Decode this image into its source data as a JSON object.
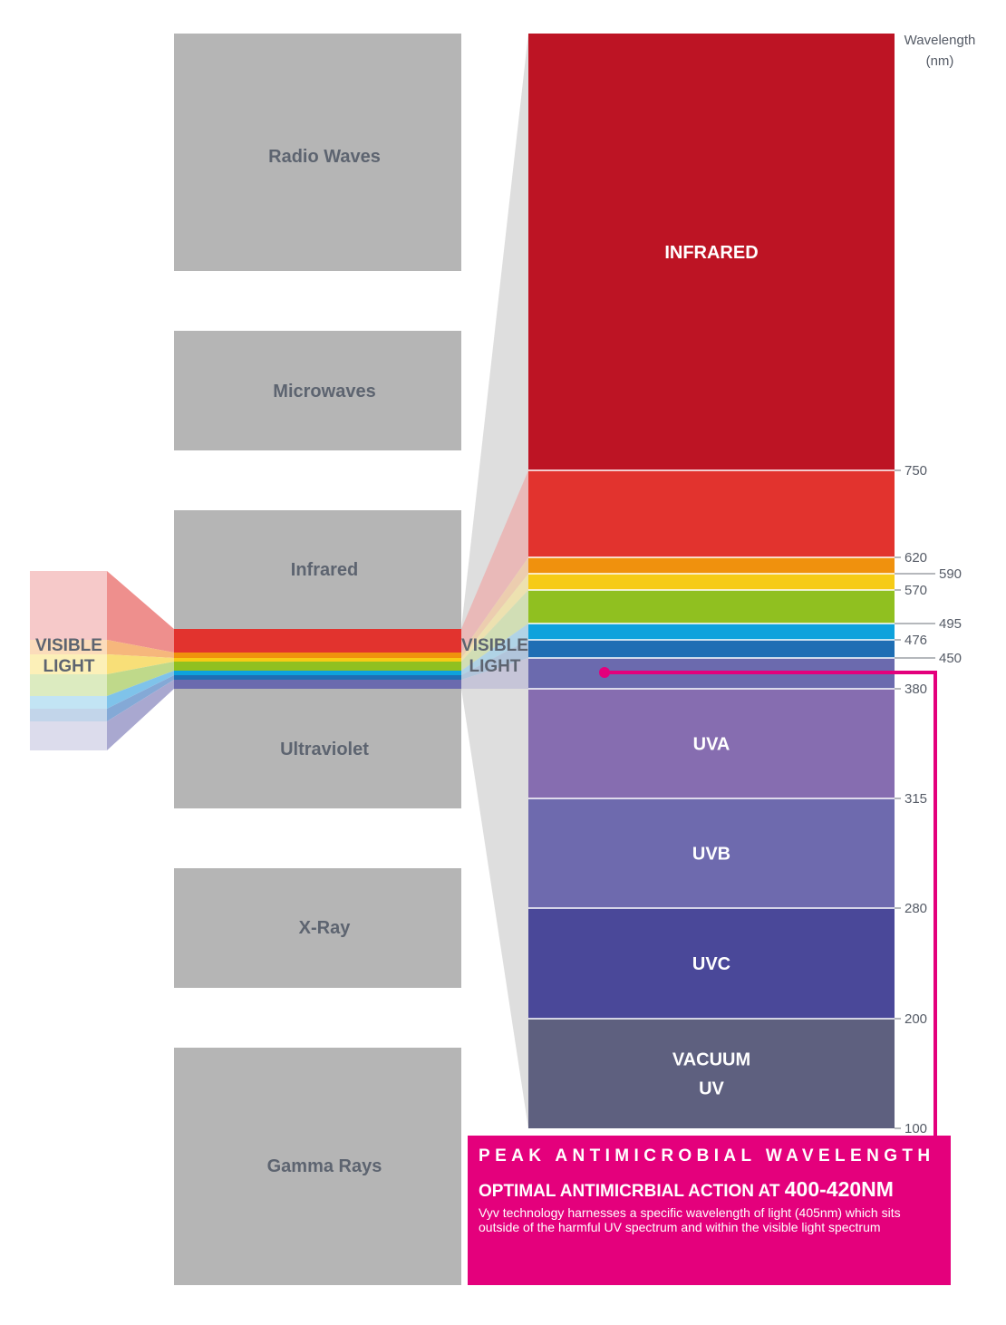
{
  "spectrum": [
    {
      "label": "Radio Waves"
    },
    {
      "label": "Microwaves"
    },
    {
      "label": "Infrared"
    },
    {
      "label": "Ultraviolet"
    },
    {
      "label": "X-Ray"
    },
    {
      "label": "Gamma Rays"
    }
  ],
  "visible_light_label": {
    "line1": "VISIBLE",
    "line2": "LIGHT"
  },
  "axis_title": {
    "line1": "Wavelength",
    "line2": "(nm)"
  },
  "bands": [
    {
      "label1": "INFRARED",
      "label2": "",
      "color": "#bd1424"
    },
    {
      "label1": "",
      "label2": "",
      "color": "#e2332e"
    },
    {
      "label1": "",
      "label2": "",
      "color": "#f0910d"
    },
    {
      "label1": "",
      "label2": "",
      "color": "#f6cb16"
    },
    {
      "label1": "",
      "label2": "",
      "color": "#90c020"
    },
    {
      "label1": "",
      "label2": "",
      "color": "#0ea2dc"
    },
    {
      "label1": "",
      "label2": "",
      "color": "#1f6eb4"
    },
    {
      "label1": "",
      "label2": "",
      "color": "#6b6aae"
    },
    {
      "label1": "UVA",
      "label2": "",
      "color": "#866db0"
    },
    {
      "label1": "UVB",
      "label2": "",
      "color": "#6e6aae"
    },
    {
      "label1": "UVC",
      "label2": "",
      "color": "#4a4899"
    },
    {
      "label1": "VACUUM",
      "label2": "UV",
      "color": "#5e607f"
    }
  ],
  "ticks": [
    {
      "value": "750"
    },
    {
      "value": "620"
    },
    {
      "value": "590"
    },
    {
      "value": "570"
    },
    {
      "value": "495"
    },
    {
      "value": "476"
    },
    {
      "value": "450"
    },
    {
      "value": "380"
    },
    {
      "value": "315"
    },
    {
      "value": "280"
    },
    {
      "value": "200"
    },
    {
      "value": "100"
    }
  ],
  "callout": {
    "heading": "PEAK ANTIMICROBIAL WAVELENGTH",
    "subheading": "OPTIMAL ANTIMICRBIAL ACTION AT",
    "subheading_value": "400-420NM",
    "body": "Vyv technology harnesses a specific wavelength of light (405nm) which sits outside of the harmful UV spectrum and within the visible light spectrum"
  },
  "colors": {
    "gray_box": "#b5b5b5",
    "gray_text": "#5d6470",
    "accent": "#e4007c"
  }
}
